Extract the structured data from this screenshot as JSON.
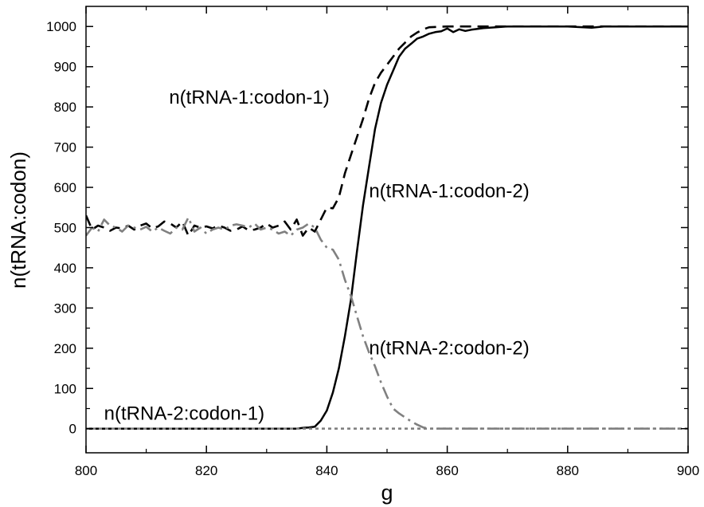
{
  "chart_data": {
    "type": "line",
    "xlabel": "g",
    "ylabel": "n(tRNA:codon)",
    "xlim": [
      800,
      900
    ],
    "ylim": [
      -60,
      1050
    ],
    "xticks": [
      800,
      820,
      840,
      860,
      880,
      900
    ],
    "yticks": [
      0,
      100,
      200,
      300,
      400,
      500,
      600,
      700,
      800,
      900,
      1000
    ],
    "grid": false,
    "legend": "none",
    "series": [
      {
        "name": "n(tRNA-1:codon-1)",
        "style": "dashed",
        "color": "#000000",
        "points": [
          [
            800,
            530
          ],
          [
            801,
            495
          ],
          [
            802,
            505
          ],
          [
            803,
            500
          ],
          [
            804,
            492
          ],
          [
            805,
            500
          ],
          [
            806,
            498
          ],
          [
            807,
            505
          ],
          [
            808,
            495
          ],
          [
            809,
            505
          ],
          [
            810,
            510
          ],
          [
            811,
            498
          ],
          [
            812,
            503
          ],
          [
            813,
            515
          ],
          [
            814,
            510
          ],
          [
            815,
            500
          ],
          [
            816,
            515
          ],
          [
            817,
            480
          ],
          [
            818,
            505
          ],
          [
            819,
            500
          ],
          [
            820,
            503
          ],
          [
            821,
            498
          ],
          [
            822,
            505
          ],
          [
            823,
            500
          ],
          [
            824,
            492
          ],
          [
            825,
            495
          ],
          [
            826,
            503
          ],
          [
            827,
            493
          ],
          [
            828,
            495
          ],
          [
            829,
            500
          ],
          [
            830,
            510
          ],
          [
            831,
            500
          ],
          [
            832,
            505
          ],
          [
            833,
            515
          ],
          [
            834,
            495
          ],
          [
            835,
            520
          ],
          [
            836,
            480
          ],
          [
            837,
            500
          ],
          [
            838,
            490
          ],
          [
            839,
            520
          ],
          [
            840,
            550
          ],
          [
            841,
            548
          ],
          [
            842,
            575
          ],
          [
            843,
            635
          ],
          [
            844,
            680
          ],
          [
            845,
            725
          ],
          [
            846,
            770
          ],
          [
            847,
            820
          ],
          [
            848,
            860
          ],
          [
            849,
            885
          ],
          [
            850,
            905
          ],
          [
            851,
            925
          ],
          [
            852,
            945
          ],
          [
            853,
            960
          ],
          [
            854,
            975
          ],
          [
            855,
            985
          ],
          [
            856,
            993
          ],
          [
            857,
            998
          ],
          [
            860,
            1000
          ],
          [
            870,
            1000
          ],
          [
            900,
            1000
          ]
        ]
      },
      {
        "name": "n(tRNA-1:codon-2)",
        "style": "solid",
        "color": "#000000",
        "points": [
          [
            800,
            0
          ],
          [
            830,
            0
          ],
          [
            835,
            0
          ],
          [
            836,
            2
          ],
          [
            837,
            3
          ],
          [
            838,
            5
          ],
          [
            839,
            20
          ],
          [
            840,
            45
          ],
          [
            841,
            90
          ],
          [
            842,
            150
          ],
          [
            843,
            230
          ],
          [
            844,
            320
          ],
          [
            845,
            440
          ],
          [
            846,
            555
          ],
          [
            847,
            650
          ],
          [
            848,
            745
          ],
          [
            849,
            810
          ],
          [
            850,
            855
          ],
          [
            851,
            890
          ],
          [
            852,
            925
          ],
          [
            853,
            945
          ],
          [
            854,
            957
          ],
          [
            855,
            970
          ],
          [
            856,
            975
          ],
          [
            857,
            982
          ],
          [
            858,
            986
          ],
          [
            859,
            988
          ],
          [
            860,
            995
          ],
          [
            861,
            986
          ],
          [
            862,
            993
          ],
          [
            863,
            989
          ],
          [
            864,
            992
          ],
          [
            866,
            996
          ],
          [
            868,
            998
          ],
          [
            870,
            1000
          ],
          [
            880,
            1000
          ],
          [
            884,
            997
          ],
          [
            886,
            1000
          ],
          [
            900,
            1000
          ]
        ]
      },
      {
        "name": "n(tRNA-2:codon-2)",
        "style": "dash-dot",
        "color": "#808080",
        "points": [
          [
            800,
            480
          ],
          [
            801,
            500
          ],
          [
            802,
            490
          ],
          [
            803,
            520
          ],
          [
            804,
            505
          ],
          [
            805,
            500
          ],
          [
            806,
            490
          ],
          [
            807,
            505
          ],
          [
            808,
            500
          ],
          [
            809,
            495
          ],
          [
            810,
            502
          ],
          [
            811,
            490
          ],
          [
            812,
            500
          ],
          [
            813,
            492
          ],
          [
            814,
            485
          ],
          [
            815,
            500
          ],
          [
            816,
            495
          ],
          [
            817,
            525
          ],
          [
            818,
            490
          ],
          [
            819,
            500
          ],
          [
            820,
            485
          ],
          [
            821,
            495
          ],
          [
            822,
            500
          ],
          [
            823,
            495
          ],
          [
            824,
            505
          ],
          [
            825,
            508
          ],
          [
            826,
            505
          ],
          [
            827,
            500
          ],
          [
            828,
            510
          ],
          [
            829,
            495
          ],
          [
            830,
            500
          ],
          [
            831,
            495
          ],
          [
            832,
            485
          ],
          [
            833,
            490
          ],
          [
            834,
            480
          ],
          [
            835,
            495
          ],
          [
            836,
            500
          ],
          [
            837,
            510
          ],
          [
            838,
            500
          ],
          [
            839,
            470
          ],
          [
            840,
            450
          ],
          [
            841,
            445
          ],
          [
            842,
            420
          ],
          [
            843,
            370
          ],
          [
            844,
            330
          ],
          [
            845,
            280
          ],
          [
            846,
            230
          ],
          [
            847,
            190
          ],
          [
            848,
            155
          ],
          [
            849,
            115
          ],
          [
            850,
            80
          ],
          [
            851,
            50
          ],
          [
            852,
            38
          ],
          [
            853,
            28
          ],
          [
            854,
            18
          ],
          [
            855,
            10
          ],
          [
            856,
            3
          ],
          [
            857,
            0
          ],
          [
            870,
            0
          ],
          [
            900,
            0
          ]
        ]
      },
      {
        "name": "n(tRNA-2:codon-1)",
        "style": "dotted",
        "color": "#808080",
        "points": [
          [
            800,
            0
          ],
          [
            900,
            0
          ]
        ]
      }
    ],
    "annotations": [
      {
        "text": "n(tRNA-1:codon-1)",
        "x": 813.8,
        "y": 808
      },
      {
        "text": "n(tRNA-1:codon-2)",
        "x": 847,
        "y": 575
      },
      {
        "text": "n(tRNA-2:codon-2)",
        "x": 847,
        "y": 185
      },
      {
        "text": "n(tRNA-2:codon-1)",
        "x": 803,
        "y": 22
      }
    ]
  }
}
